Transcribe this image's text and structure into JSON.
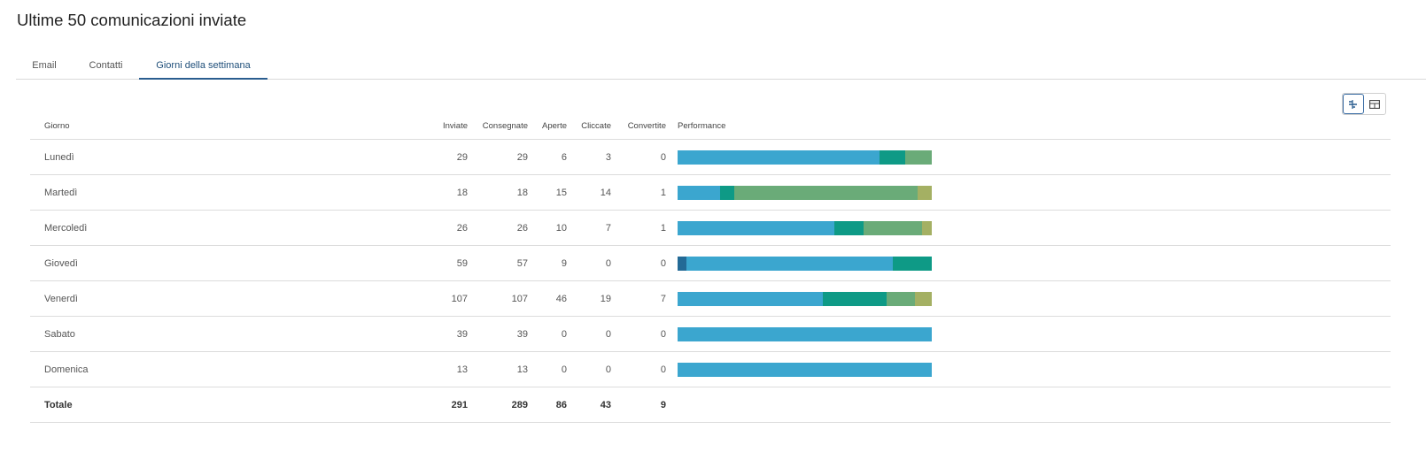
{
  "title": "Ultime 50 comunicazioni inviate",
  "tabs": [
    {
      "label": "Email",
      "active": false
    },
    {
      "label": "Contatti",
      "active": false
    },
    {
      "label": "Giorni della settimana",
      "active": true
    }
  ],
  "view_toggle": {
    "options": [
      {
        "icon": "chart-view-icon",
        "active": true
      },
      {
        "icon": "table-view-icon",
        "active": false
      }
    ]
  },
  "colors": {
    "remaining_delivered": "#3ba6cf",
    "not_delivered": "#236a96",
    "opened": "#0e9a86",
    "clicked": "#6aab78",
    "converted": "#a4b063"
  },
  "table": {
    "headers": {
      "day": "Giorno",
      "sent": "Inviate",
      "delivered": "Consegnate",
      "opened": "Aperte",
      "clicked": "Cliccate",
      "converted": "Convertite",
      "performance": "Performance"
    },
    "rows": [
      {
        "day": "Lunedì",
        "sent": "29",
        "delivered": "29",
        "opened": "6",
        "clicked": "3",
        "converted": "0"
      },
      {
        "day": "Martedì",
        "sent": "18",
        "delivered": "18",
        "opened": "15",
        "clicked": "14",
        "converted": "1"
      },
      {
        "day": "Mercoledì",
        "sent": "26",
        "delivered": "26",
        "opened": "10",
        "clicked": "7",
        "converted": "1"
      },
      {
        "day": "Giovedì",
        "sent": "59",
        "delivered": "57",
        "opened": "9",
        "clicked": "0",
        "converted": "0"
      },
      {
        "day": "Venerdì",
        "sent": "107",
        "delivered": "107",
        "opened": "46",
        "clicked": "19",
        "converted": "7"
      },
      {
        "day": "Sabato",
        "sent": "39",
        "delivered": "39",
        "opened": "0",
        "clicked": "0",
        "converted": "0"
      },
      {
        "day": "Domenica",
        "sent": "13",
        "delivered": "13",
        "opened": "0",
        "clicked": "0",
        "converted": "0"
      }
    ],
    "total": {
      "day": "Totale",
      "sent": "291",
      "delivered": "289",
      "opened": "86",
      "clicked": "43",
      "converted": "9"
    }
  }
}
